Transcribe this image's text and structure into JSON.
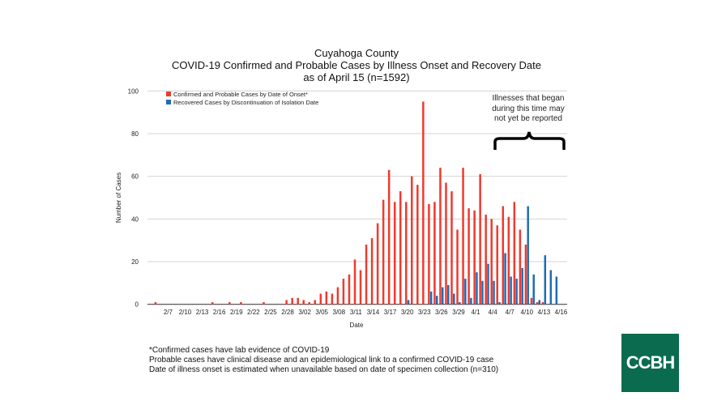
{
  "chart_data": {
    "type": "bar",
    "title_lines": [
      "Cuyahoga County",
      "COVID-19 Confirmed and Probable Cases by Illness Onset and Recovery Date",
      "as of April 15  (n=1592)"
    ],
    "xlabel": "Date",
    "ylabel": "Number of Cases",
    "ylim": [
      0,
      100
    ],
    "yticks": [
      0,
      20,
      40,
      60,
      80,
      100
    ],
    "xticks": [
      "2/7",
      "2/10",
      "2/13",
      "2/16",
      "2/19",
      "2/22",
      "2/25",
      "2/28",
      "3/02",
      "3/05",
      "3/08",
      "3/11",
      "3/14",
      "3/17",
      "3/20",
      "3/23",
      "3/26",
      "3/29",
      "4/1",
      "4/4",
      "4/7",
      "4/10",
      "4/13",
      "4/16"
    ],
    "grid": true,
    "legend_position": "top-left",
    "annotation": "Illnesses that began during this time may not yet be reported",
    "series": [
      {
        "name": "Confirmed and Probable Cases by Date of Onset*",
        "color": "#f03a2e",
        "points": [
          [
            "2/5",
            1
          ],
          [
            "2/15",
            1
          ],
          [
            "2/18",
            1
          ],
          [
            "2/20",
            1
          ],
          [
            "2/24",
            1
          ],
          [
            "2/28",
            2
          ],
          [
            "2/29",
            3
          ],
          [
            "3/1",
            3
          ],
          [
            "3/2",
            2
          ],
          [
            "3/3",
            1
          ],
          [
            "3/4",
            2
          ],
          [
            "3/5",
            5
          ],
          [
            "3/6",
            6
          ],
          [
            "3/7",
            5
          ],
          [
            "3/8",
            8
          ],
          [
            "3/9",
            12
          ],
          [
            "3/10",
            14
          ],
          [
            "3/11",
            21
          ],
          [
            "3/12",
            16
          ],
          [
            "3/13",
            28
          ],
          [
            "3/14",
            31
          ],
          [
            "3/15",
            38
          ],
          [
            "3/16",
            49
          ],
          [
            "3/17",
            63
          ],
          [
            "3/18",
            48
          ],
          [
            "3/19",
            53
          ],
          [
            "3/20",
            48
          ],
          [
            "3/21",
            60
          ],
          [
            "3/22",
            56
          ],
          [
            "3/23",
            95
          ],
          [
            "3/24",
            47
          ],
          [
            "3/25",
            48
          ],
          [
            "3/26",
            64
          ],
          [
            "3/27",
            57
          ],
          [
            "3/28",
            53
          ],
          [
            "3/29",
            35
          ],
          [
            "3/30",
            64
          ],
          [
            "3/31",
            45
          ],
          [
            "4/1",
            44
          ],
          [
            "4/2",
            61
          ],
          [
            "4/3",
            42
          ],
          [
            "4/4",
            40
          ],
          [
            "4/5",
            37
          ],
          [
            "4/6",
            46
          ],
          [
            "4/7",
            41
          ],
          [
            "4/8",
            48
          ],
          [
            "4/9",
            35
          ],
          [
            "4/10",
            28
          ],
          [
            "4/11",
            3
          ],
          [
            "4/12",
            1
          ],
          [
            "4/13",
            1
          ]
        ]
      },
      {
        "name": "Recovered Cases by Discontinuation of Isolation Date",
        "color": "#1f6db5",
        "points": [
          [
            "3/20",
            2
          ],
          [
            "3/24",
            6
          ],
          [
            "3/25",
            4
          ],
          [
            "3/26",
            8
          ],
          [
            "3/27",
            9
          ],
          [
            "3/28",
            5
          ],
          [
            "3/29",
            1
          ],
          [
            "3/30",
            12
          ],
          [
            "3/31",
            3
          ],
          [
            "4/1",
            15
          ],
          [
            "4/2",
            11
          ],
          [
            "4/3",
            19
          ],
          [
            "4/4",
            11
          ],
          [
            "4/5",
            1
          ],
          [
            "4/6",
            24
          ],
          [
            "4/7",
            13
          ],
          [
            "4/8",
            12
          ],
          [
            "4/9",
            17
          ],
          [
            "4/10",
            46
          ],
          [
            "4/11",
            14
          ],
          [
            "4/12",
            2
          ],
          [
            "4/13",
            23
          ],
          [
            "4/14",
            16
          ],
          [
            "4/15",
            13
          ]
        ]
      }
    ]
  },
  "footnotes": [
    "*Confirmed cases have lab evidence of COVID-19",
    "Probable cases have clinical disease and an epidemiological link to a confirmed COVID-19 case",
    "Date of illness onset is estimated when unavailable based on date of specimen collection (n=310)"
  ],
  "logo": {
    "text": "CCBH",
    "color": "#0b6b4e"
  }
}
